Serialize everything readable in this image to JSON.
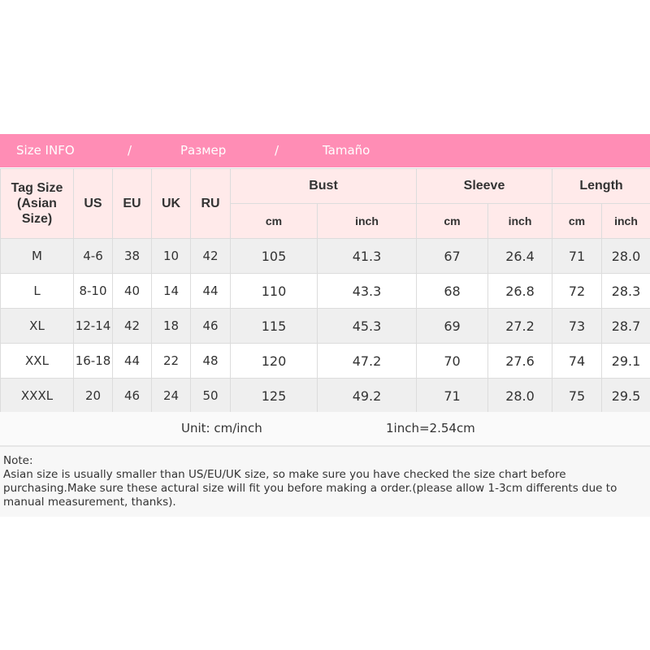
{
  "banner": {
    "title_en": "Size INFO",
    "sep1": "/",
    "title_ru": "Размер",
    "sep2": "/",
    "title_es": "Tamaño"
  },
  "colors": {
    "banner": "#ff8db5",
    "header_bg": "#ffeaea",
    "row_alt": "#efefef"
  },
  "header": {
    "tag_size": "Tag Size",
    "tag_size_sub": "(Asian Size)",
    "us": "US",
    "eu": "EU",
    "uk": "UK",
    "ru": "RU",
    "bust": "Bust",
    "sleeve": "Sleeve",
    "length": "Length",
    "cm": "cm",
    "inch": "inch"
  },
  "rows": [
    [
      "M",
      "4-6",
      "38",
      "10",
      "42",
      "105",
      "41.3",
      "67",
      "26.4",
      "71",
      "28.0"
    ],
    [
      "L",
      "8-10",
      "40",
      "14",
      "44",
      "110",
      "43.3",
      "68",
      "26.8",
      "72",
      "28.3"
    ],
    [
      "XL",
      "12-14",
      "42",
      "18",
      "46",
      "115",
      "45.3",
      "69",
      "27.2",
      "73",
      "28.7"
    ],
    [
      "XXL",
      "16-18",
      "44",
      "22",
      "48",
      "120",
      "47.2",
      "70",
      "27.6",
      "74",
      "29.1"
    ],
    [
      "XXXL",
      "20",
      "46",
      "24",
      "50",
      "125",
      "49.2",
      "71",
      "28.0",
      "75",
      "29.5"
    ]
  ],
  "unit": {
    "label": "Unit: cm/inch",
    "conversion": "1inch=2.54cm"
  },
  "note": {
    "title": "Note:",
    "body": "Asian size is usually smaller than US/EU/UK size, so make sure you have checked the size chart before purchasing.Make sure these actural size will fit you before making a order.(please allow 1-3cm differents due to manual measurement, thanks)."
  }
}
